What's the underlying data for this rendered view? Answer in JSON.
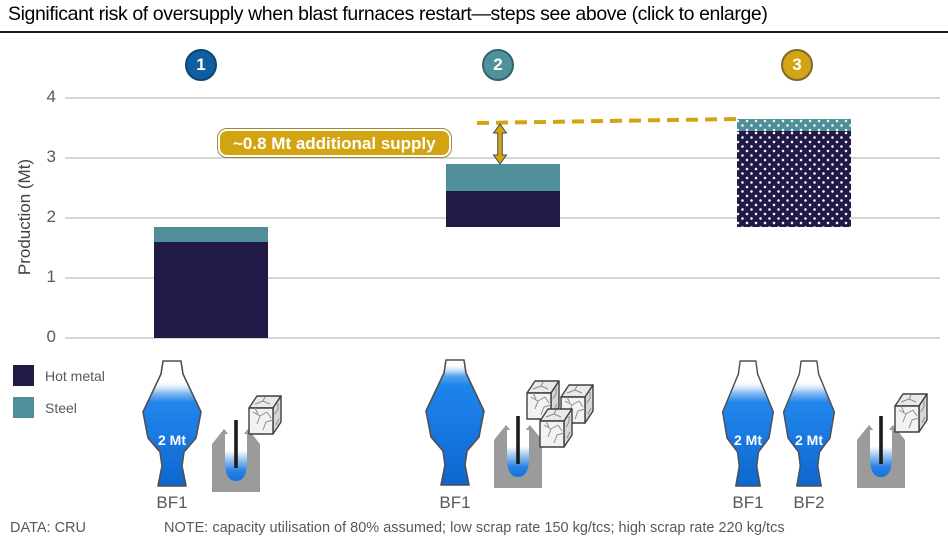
{
  "header": {
    "title": "Significant risk of oversupply when blast furnaces restart—steps see above (click to enlarge)"
  },
  "steps": [
    {
      "number": "1",
      "color": "#0f5fa0",
      "border": "#0c4574"
    },
    {
      "number": "2",
      "color": "#4f929b",
      "border": "#2f646c"
    },
    {
      "number": "3",
      "color": "#d3a413",
      "border": "#7c6a2a"
    }
  ],
  "chart_data": {
    "type": "bar",
    "stacked": true,
    "ylabel": "Production (Mt)",
    "ylim": [
      0,
      4
    ],
    "yticks": [
      0,
      1,
      2,
      3,
      4
    ],
    "grid": "horizontal",
    "categories": [
      "step 1",
      "step 2",
      "step 3"
    ],
    "series_colors": {
      "hot_metal": "#221a46",
      "steel": "#4f8f99"
    },
    "bars": [
      {
        "step": "1",
        "dotted": false,
        "segments": [
          {
            "series": "Hot metal",
            "key": "hot_metal",
            "from": 0,
            "to": 1.6
          },
          {
            "series": "Steel",
            "key": "steel",
            "from": 1.6,
            "to": 1.85
          }
        ]
      },
      {
        "step": "2",
        "dotted": false,
        "segments": [
          {
            "series": "Hot metal",
            "key": "hot_metal",
            "from": 1.85,
            "to": 2.45
          },
          {
            "series": "Steel",
            "key": "steel",
            "from": 2.45,
            "to": 2.9
          }
        ]
      },
      {
        "step": "3",
        "dotted": true,
        "segments": [
          {
            "series": "Hot metal",
            "key": "hot_metal",
            "from": 1.85,
            "to": 3.45
          },
          {
            "series": "Steel",
            "key": "steel",
            "from": 3.45,
            "to": 3.65
          }
        ]
      }
    ],
    "annotation": {
      "label": "~0.8 Mt additional supply",
      "dashed_line_level": 3.6,
      "arrow_top": 3.6,
      "arrow_bottom": 2.9,
      "accent_color": "#d3a412"
    }
  },
  "legend": [
    {
      "label": "Hot metal",
      "color": "#221a46"
    },
    {
      "label": "Steel",
      "color": "#4f8f99"
    }
  ],
  "furnace_groups": [
    {
      "furnaces": [
        {
          "label": "BF1",
          "capacity": "2 Mt"
        }
      ],
      "scrap_cubes": 1
    },
    {
      "furnaces": [
        {
          "label": "BF1",
          "capacity": ""
        }
      ],
      "scrap_cubes": 3
    },
    {
      "furnaces": [
        {
          "label": "BF1",
          "capacity": "2 Mt"
        },
        {
          "label": "BF2",
          "capacity": "2 Mt"
        }
      ],
      "scrap_cubes": 1
    }
  ],
  "footer": {
    "source": "DATA: CRU",
    "note": "NOTE: capacity utilisation of 80% assumed; low scrap rate 150 kg/tcs; high scrap rate 220 kg/tcs"
  }
}
